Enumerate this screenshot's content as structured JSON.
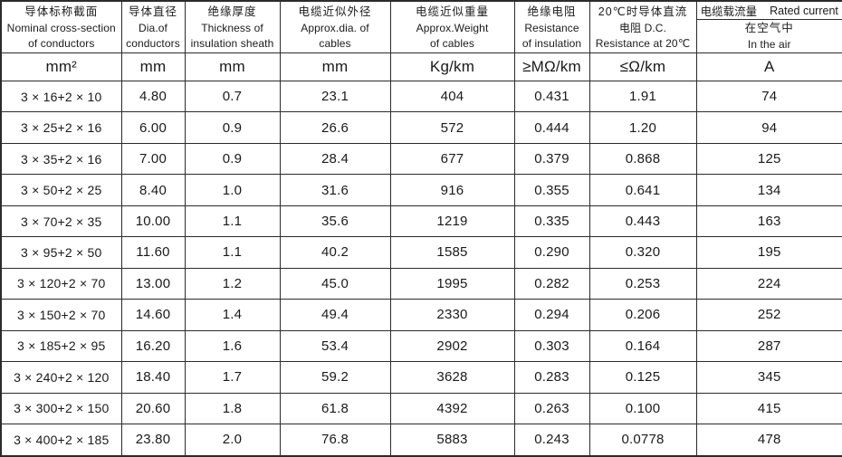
{
  "table": {
    "columns": [
      {
        "zh": "导体标称截面",
        "en1": "Nominal cross-section",
        "en2": "of conductors",
        "unit": "mm²"
      },
      {
        "zh": "导体直径",
        "en1": "Dia.of",
        "en2": "conductors",
        "unit": "mm"
      },
      {
        "zh": "绝缘厚度",
        "en1": "Thickness of",
        "en2": "insulation sheath",
        "unit": "mm"
      },
      {
        "zh": "电缆近似外径",
        "en1": "Approx.dia. of",
        "en2": "cables",
        "unit": "mm"
      },
      {
        "zh": "电缆近似重量",
        "en1": "Approx.Weight",
        "en2": "of cables",
        "unit": "Kg/km"
      },
      {
        "zh": "绝缘电阻",
        "en1": "Resistance",
        "en2": "of insulation",
        "unit": "≥MΩ/km"
      },
      {
        "zh": "20℃时导体直流",
        "en1": "电阻 D.C.",
        "en2": "Resistance at 20℃",
        "unit": "≤Ω/km"
      },
      {
        "zh_top": "电缆载流量",
        "en_top": "Rated current",
        "sub_zh": "在空气中",
        "sub_en": "In the air",
        "unit": "A"
      }
    ],
    "rows": [
      [
        "3 × 16+2 × 10",
        "4.80",
        "0.7",
        "23.1",
        "404",
        "0.431",
        "1.91",
        "74"
      ],
      [
        "3 × 25+2 × 16",
        "6.00",
        "0.9",
        "26.6",
        "572",
        "0.444",
        "1.20",
        "94"
      ],
      [
        "3 × 35+2 × 16",
        "7.00",
        "0.9",
        "28.4",
        "677",
        "0.379",
        "0.868",
        "125"
      ],
      [
        "3 × 50+2 × 25",
        "8.40",
        "1.0",
        "31.6",
        "916",
        "0.355",
        "0.641",
        "134"
      ],
      [
        "3 × 70+2 × 35",
        "10.00",
        "1.1",
        "35.6",
        "1219",
        "0.335",
        "0.443",
        "163"
      ],
      [
        "3 × 95+2 × 50",
        "11.60",
        "1.1",
        "40.2",
        "1585",
        "0.290",
        "0.320",
        "195"
      ],
      [
        "3 × 120+2 × 70",
        "13.00",
        "1.2",
        "45.0",
        "1995",
        "0.282",
        "0.253",
        "224"
      ],
      [
        "3 × 150+2 × 70",
        "14.60",
        "1.4",
        "49.4",
        "2330",
        "0.294",
        "0.206",
        "252"
      ],
      [
        "3 × 185+2 × 95",
        "16.20",
        "1.6",
        "53.4",
        "2902",
        "0.303",
        "0.164",
        "287"
      ],
      [
        "3 × 240+2 × 120",
        "18.40",
        "1.7",
        "59.2",
        "3628",
        "0.283",
        "0.125",
        "345"
      ],
      [
        "3 × 300+2 × 150",
        "20.60",
        "1.8",
        "61.8",
        "4392",
        "0.263",
        "0.100",
        "415"
      ],
      [
        "3 × 400+2 × 185",
        "23.80",
        "2.0",
        "76.8",
        "5883",
        "0.243",
        "0.0778",
        "478"
      ]
    ],
    "colors": {
      "border": "#2b2b2b",
      "text": "#1a1a1a",
      "background": "#ffffff"
    }
  }
}
